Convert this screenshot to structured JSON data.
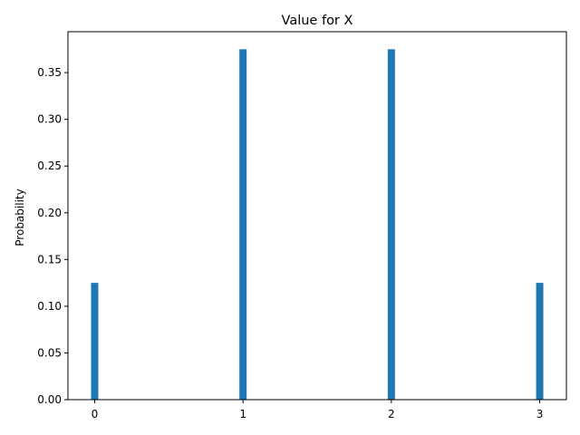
{
  "chart_data": {
    "type": "bar",
    "title": "Value for X",
    "xlabel": "",
    "ylabel": "Probability",
    "x": [
      0,
      1,
      2,
      3
    ],
    "values": [
      0.125,
      0.375,
      0.375,
      0.125
    ],
    "xlim": [
      -0.18,
      3.18
    ],
    "ylim": [
      0,
      0.39375
    ],
    "xticks": [
      "0",
      "1",
      "2",
      "3"
    ],
    "yticks": [
      "0.00",
      "0.05",
      "0.10",
      "0.15",
      "0.20",
      "0.25",
      "0.30",
      "0.35"
    ],
    "grid": false,
    "bar_color": "#1f77b4"
  }
}
